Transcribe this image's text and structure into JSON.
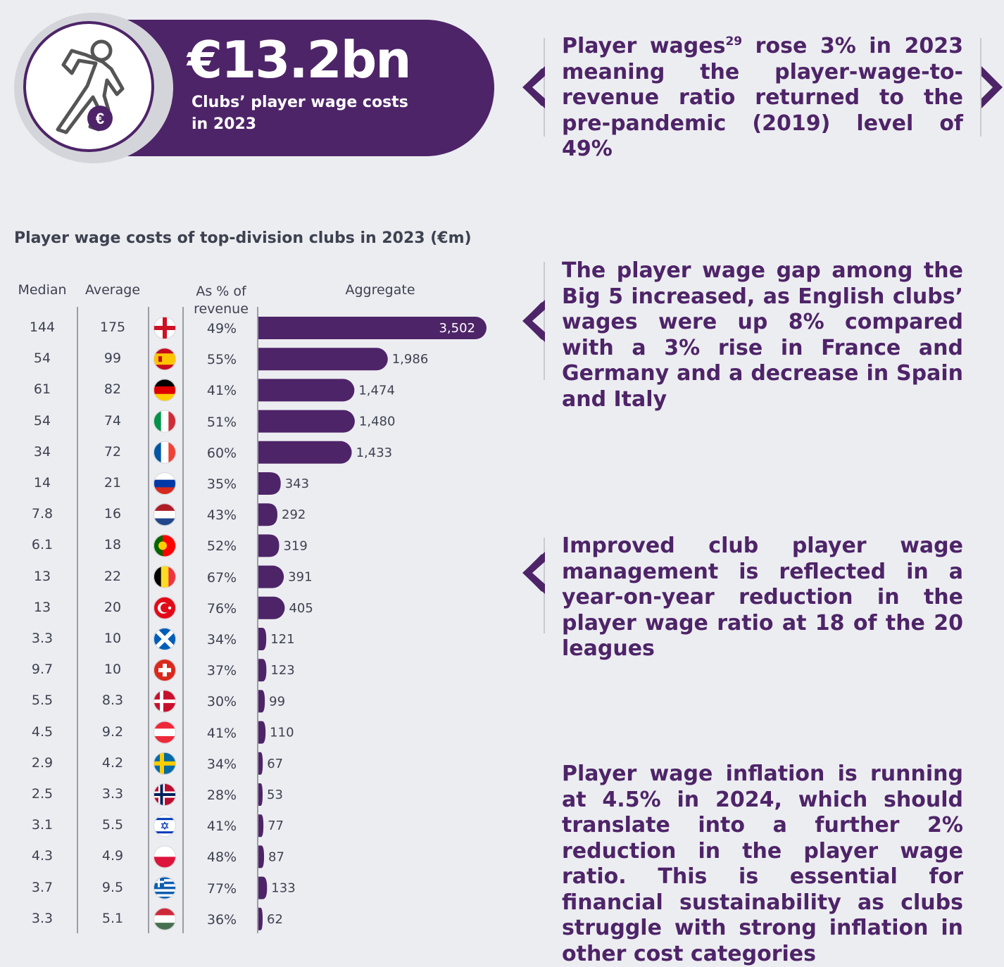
{
  "hero": {
    "value": "€13.2bn",
    "label": "Clubs’ player wage costs in 2023",
    "icon": "footballer-euro-icon"
  },
  "callouts": [
    {
      "pre": "Player wages",
      "sup": "29",
      "post": " rose 3% in 2023 meaning the player-wage-to-revenue ratio returned to the pre-pandemic (2019) level of 49%"
    },
    {
      "text": "The player wage gap among the Big 5 increased, as English clubs’ wages were up 8% compared with a 3% rise in France and Germany and a decrease in Spain and Italy"
    },
    {
      "text": "Improved club player wage management is reflected in a year-on-year reduction in the player wage ratio at 18 of the 20 leagues"
    },
    {
      "text": "Player wage inflation is running at 4.5% in 2024, which should translate into a further 2% reduction in the player wage ratio. This is essential for financial sustainability as clubs struggle with strong inflation in other cost categories"
    }
  ],
  "colors": {
    "purple": "#4e2468",
    "background": "#ecedf1"
  },
  "chart_data": {
    "type": "bar",
    "orientation": "horizontal",
    "title": "Player wage costs of top-division clubs in 2023 (€m)",
    "columns": {
      "median": "Median",
      "average": "Average",
      "pct": "As % of revenue",
      "aggregate": "Aggregate"
    },
    "rows": [
      {
        "country": "England",
        "flag": "england-flag-icon",
        "median": "144",
        "average": "175",
        "pct": "49%",
        "aggregate": 3502,
        "label": "3,502"
      },
      {
        "country": "Spain",
        "flag": "spain-flag-icon",
        "median": "54",
        "average": "99",
        "pct": "55%",
        "aggregate": 1986,
        "label": "1,986"
      },
      {
        "country": "Germany",
        "flag": "germany-flag-icon",
        "median": "61",
        "average": "82",
        "pct": "41%",
        "aggregate": 1474,
        "label": "1,474"
      },
      {
        "country": "Italy",
        "flag": "italy-flag-icon",
        "median": "54",
        "average": "74",
        "pct": "51%",
        "aggregate": 1480,
        "label": "1,480"
      },
      {
        "country": "France",
        "flag": "france-flag-icon",
        "median": "34",
        "average": "72",
        "pct": "60%",
        "aggregate": 1433,
        "label": "1,433"
      },
      {
        "country": "Russia",
        "flag": "russia-flag-icon",
        "median": "14",
        "average": "21",
        "pct": "35%",
        "aggregate": 343,
        "label": "343"
      },
      {
        "country": "Netherlands",
        "flag": "netherlands-flag-icon",
        "median": "7.8",
        "average": "16",
        "pct": "43%",
        "aggregate": 292,
        "label": "292"
      },
      {
        "country": "Portugal",
        "flag": "portugal-flag-icon",
        "median": "6.1",
        "average": "18",
        "pct": "52%",
        "aggregate": 319,
        "label": "319"
      },
      {
        "country": "Belgium",
        "flag": "belgium-flag-icon",
        "median": "13",
        "average": "22",
        "pct": "67%",
        "aggregate": 391,
        "label": "391"
      },
      {
        "country": "Türkiye",
        "flag": "turkey-flag-icon",
        "median": "13",
        "average": "20",
        "pct": "76%",
        "aggregate": 405,
        "label": "405"
      },
      {
        "country": "Scotland",
        "flag": "scotland-flag-icon",
        "median": "3.3",
        "average": "10",
        "pct": "34%",
        "aggregate": 121,
        "label": "121"
      },
      {
        "country": "Switzerland",
        "flag": "switzerland-flag-icon",
        "median": "9.7",
        "average": "10",
        "pct": "37%",
        "aggregate": 123,
        "label": "123"
      },
      {
        "country": "Denmark",
        "flag": "denmark-flag-icon",
        "median": "5.5",
        "average": "8.3",
        "pct": "30%",
        "aggregate": 99,
        "label": "99"
      },
      {
        "country": "Austria",
        "flag": "austria-flag-icon",
        "median": "4.5",
        "average": "9.2",
        "pct": "41%",
        "aggregate": 110,
        "label": "110"
      },
      {
        "country": "Sweden",
        "flag": "sweden-flag-icon",
        "median": "2.9",
        "average": "4.2",
        "pct": "34%",
        "aggregate": 67,
        "label": "67"
      },
      {
        "country": "Norway",
        "flag": "norway-flag-icon",
        "median": "2.5",
        "average": "3.3",
        "pct": "28%",
        "aggregate": 53,
        "label": "53"
      },
      {
        "country": "Israel",
        "flag": "israel-flag-icon",
        "median": "3.1",
        "average": "5.5",
        "pct": "41%",
        "aggregate": 77,
        "label": "77"
      },
      {
        "country": "Poland",
        "flag": "poland-flag-icon",
        "median": "4.3",
        "average": "4.9",
        "pct": "48%",
        "aggregate": 87,
        "label": "87"
      },
      {
        "country": "Greece",
        "flag": "greece-flag-icon",
        "median": "3.7",
        "average": "9.5",
        "pct": "77%",
        "aggregate": 133,
        "label": "133"
      },
      {
        "country": "Hungary",
        "flag": "hungary-flag-icon",
        "median": "3.3",
        "average": "5.1",
        "pct": "36%",
        "aggregate": 62,
        "label": "62"
      }
    ]
  }
}
